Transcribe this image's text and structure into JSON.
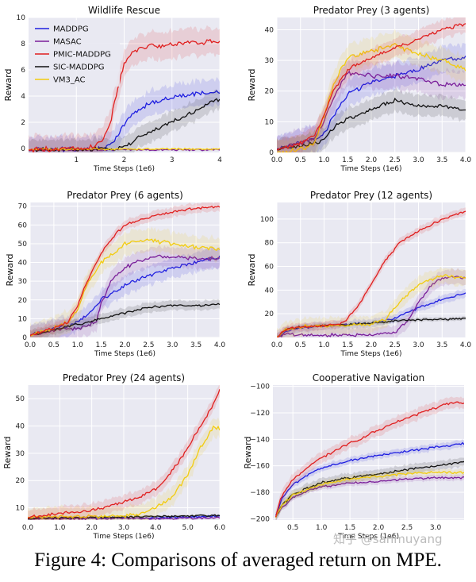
{
  "figure": {
    "caption": "Figure 4: Comparisons of averaged return on MPE.",
    "watermark": "知乎 @sanmuyang"
  },
  "legend": {
    "entries": [
      "MADDPG",
      "MASAC",
      "PMIC-MADDPG",
      "SIC-MADDPG",
      "VM3_AC"
    ],
    "colors": [
      "#1f1fe0",
      "#7a1f9a",
      "#e01f1f",
      "#111111",
      "#f2cc0f"
    ]
  },
  "chart_data": [
    {
      "type": "line",
      "title": "Wildlife Rescue",
      "xlabel": "Time Steps (1e6)",
      "ylabel": "Reward",
      "xlim": [
        0,
        4
      ],
      "ylim": [
        -0.3,
        10
      ],
      "xticks": [
        1,
        2,
        3,
        4
      ],
      "yticks": [
        0,
        2,
        4,
        6,
        8,
        10
      ],
      "xtick_labels": [
        "1",
        "2",
        "3",
        "4"
      ],
      "ytick_labels": [
        "0",
        "2",
        "4",
        "6",
        "8",
        "10"
      ],
      "legend": "top-left",
      "series": [
        {
          "name": "MADDPG",
          "x": [
            0,
            1.0,
            1.4,
            1.6,
            1.8,
            2.0,
            2.2,
            2.4,
            2.6,
            2.8,
            3.0,
            3.2,
            3.4,
            3.6,
            3.8,
            4.0
          ],
          "y": [
            -0.1,
            -0.05,
            0.0,
            0.05,
            0.7,
            1.8,
            2.7,
            3.2,
            3.5,
            3.7,
            3.9,
            4.0,
            4.1,
            4.2,
            4.3,
            4.3
          ],
          "band": 1.1
        },
        {
          "name": "MASAC",
          "x": [
            0,
            4.0
          ],
          "y": [
            -0.1,
            -0.1
          ],
          "band": 0.1
        },
        {
          "name": "PMIC-MADDPG",
          "x": [
            0,
            1.0,
            1.3,
            1.5,
            1.7,
            1.8,
            1.9,
            2.0,
            2.2,
            2.4,
            2.6,
            2.8,
            3.0,
            3.2,
            3.4,
            3.6,
            3.8,
            4.0
          ],
          "y": [
            -0.1,
            0.0,
            0.1,
            0.4,
            1.8,
            3.5,
            5.0,
            6.5,
            7.4,
            7.7,
            7.9,
            7.8,
            7.9,
            8.0,
            8.1,
            8.0,
            8.2,
            8.1
          ],
          "band": 1.2
        },
        {
          "name": "SIC-MADDPG",
          "x": [
            0,
            1.5,
            1.9,
            2.1,
            2.3,
            2.5,
            2.7,
            2.9,
            3.1,
            3.3,
            3.5,
            3.7,
            3.8,
            4.0
          ],
          "y": [
            -0.1,
            -0.05,
            0.0,
            0.3,
            0.9,
            1.2,
            1.5,
            1.9,
            2.2,
            2.6,
            2.8,
            3.3,
            3.6,
            3.7
          ],
          "band": 0.9
        },
        {
          "name": "VM3_AC",
          "x": [
            0,
            4.0
          ],
          "y": [
            -0.05,
            -0.05
          ],
          "band": 0.08
        }
      ]
    },
    {
      "type": "line",
      "title": "Predator Prey (3 agents)",
      "xlabel": "Time Steps (1e6)",
      "ylabel": "Reward",
      "xlim": [
        0,
        4
      ],
      "ylim": [
        0,
        44
      ],
      "xticks": [
        0,
        0.5,
        1,
        1.5,
        2,
        2.5,
        3,
        3.5,
        4
      ],
      "yticks": [
        0,
        10,
        20,
        30,
        40
      ],
      "xtick_labels": [
        "0.0",
        "0.5",
        "1.0",
        "1.5",
        "2.0",
        "2.5",
        "3.0",
        "3.5",
        "4.0"
      ],
      "ytick_labels": [
        "0",
        "10",
        "20",
        "30",
        "40"
      ],
      "series": [
        {
          "name": "MADDPG",
          "x": [
            0,
            0.5,
            0.8,
            1.0,
            1.2,
            1.5,
            2.0,
            2.5,
            3.0,
            3.5,
            4.0
          ],
          "y": [
            1,
            3,
            4,
            6,
            12,
            19,
            23,
            25,
            27,
            30,
            31
          ],
          "band": 5
        },
        {
          "name": "MASAC",
          "x": [
            0,
            0.5,
            0.8,
            1.0,
            1.2,
            1.5,
            2.0,
            2.5,
            3.0,
            3.5,
            4.0
          ],
          "y": [
            1,
            3,
            5,
            10,
            18,
            26,
            25,
            25,
            24,
            22,
            22
          ],
          "band": 5
        },
        {
          "name": "PMIC-MADDPG",
          "x": [
            0,
            0.5,
            0.8,
            1.0,
            1.2,
            1.4,
            1.6,
            2.0,
            2.5,
            3.0,
            3.5,
            4.0
          ],
          "y": [
            1,
            3,
            6,
            12,
            20,
            25,
            28,
            31,
            34,
            37,
            40,
            42
          ],
          "band": 3.5
        },
        {
          "name": "SIC-MADDPG",
          "x": [
            0,
            0.5,
            0.8,
            1.0,
            1.2,
            1.5,
            2.0,
            2.5,
            3.0,
            3.5,
            4.0
          ],
          "y": [
            1,
            2,
            3,
            4,
            8,
            11,
            14,
            17,
            15,
            15,
            14
          ],
          "band": 4
        },
        {
          "name": "VM3_AC",
          "x": [
            0,
            0.5,
            0.8,
            1.0,
            1.2,
            1.5,
            2.0,
            2.5,
            3.0,
            3.5,
            4.0
          ],
          "y": [
            0,
            1,
            3,
            12,
            22,
            31,
            33,
            35,
            32,
            30,
            27
          ],
          "band": 5
        }
      ]
    },
    {
      "type": "line",
      "title": "Predator Prey (6 agents)",
      "xlabel": "Time Steps (1e6)",
      "ylabel": "Reward",
      "xlim": [
        0,
        4
      ],
      "ylim": [
        0,
        72
      ],
      "xticks": [
        0,
        0.5,
        1,
        1.5,
        2,
        2.5,
        3,
        3.5,
        4
      ],
      "yticks": [
        0,
        10,
        20,
        30,
        40,
        50,
        60,
        70
      ],
      "xtick_labels": [
        "0.0",
        "0.5",
        "1.0",
        "1.5",
        "2.0",
        "2.5",
        "3.0",
        "3.5",
        "4.0"
      ],
      "ytick_labels": [
        "0",
        "10",
        "20",
        "30",
        "40",
        "50",
        "60",
        "70"
      ],
      "series": [
        {
          "name": "MADDPG",
          "x": [
            0,
            0.5,
            0.8,
            1.0,
            1.3,
            1.5,
            2.0,
            2.5,
            3.0,
            3.5,
            4.0
          ],
          "y": [
            1,
            5,
            6,
            8,
            14,
            20,
            28,
            33,
            37,
            40,
            43
          ],
          "band": 6
        },
        {
          "name": "MASAC",
          "x": [
            0,
            0.5,
            1.0,
            1.2,
            1.4,
            1.5,
            1.7,
            2.0,
            2.3,
            2.6,
            3.0,
            3.5,
            4.0
          ],
          "y": [
            1,
            4,
            5,
            6,
            9,
            18,
            30,
            37,
            41,
            43,
            43,
            42,
            42
          ],
          "band": 6
        },
        {
          "name": "PMIC-MADDPG",
          "x": [
            0,
            0.5,
            0.8,
            1.0,
            1.2,
            1.5,
            1.8,
            2.0,
            2.5,
            3.0,
            3.5,
            4.0
          ],
          "y": [
            1,
            5,
            8,
            17,
            30,
            45,
            55,
            60,
            64,
            67,
            69,
            70
          ],
          "band": 3
        },
        {
          "name": "SIC-MADDPG",
          "x": [
            0,
            0.5,
            1.0,
            1.5,
            2.0,
            2.5,
            3.0,
            3.5,
            4.0
          ],
          "y": [
            1,
            4,
            7,
            10,
            13,
            16,
            17,
            17,
            18
          ],
          "band": 3
        },
        {
          "name": "VM3_AC",
          "x": [
            0,
            0.5,
            0.8,
            1.0,
            1.2,
            1.5,
            2.0,
            2.5,
            3.0,
            3.5,
            4.0
          ],
          "y": [
            1,
            5,
            8,
            15,
            28,
            40,
            50,
            52,
            50,
            48,
            47
          ],
          "band": 7
        }
      ]
    },
    {
      "type": "line",
      "title": "Predator Prey (12 agents)",
      "xlabel": "Time Steps (1e6)",
      "ylabel": "Reward",
      "xlim": [
        0,
        4
      ],
      "ylim": [
        0,
        114
      ],
      "xticks": [
        0,
        0.5,
        1,
        1.5,
        2,
        2.5,
        3,
        3.5,
        4
      ],
      "yticks": [
        20,
        40,
        60,
        80,
        100
      ],
      "xtick_labels": [
        "0.0",
        "0.5",
        "1.0",
        "1.5",
        "2.0",
        "2.5",
        "3.0",
        "3.5",
        "4.0"
      ],
      "ytick_labels": [
        "20",
        "40",
        "60",
        "80",
        "100"
      ],
      "series": [
        {
          "name": "MADDPG",
          "x": [
            0,
            0.2,
            0.5,
            1.0,
            1.5,
            2.0,
            2.5,
            3.0,
            3.5,
            4.0
          ],
          "y": [
            0,
            5,
            8,
            10,
            11,
            12,
            16,
            25,
            32,
            37
          ],
          "band": 4
        },
        {
          "name": "MASAC",
          "x": [
            0,
            0.2,
            0.5,
            1.0,
            1.5,
            2.0,
            2.5,
            2.8,
            3.0,
            3.3,
            3.5,
            3.8,
            4.0
          ],
          "y": [
            0,
            3,
            2,
            2,
            2,
            2,
            4,
            15,
            30,
            45,
            50,
            51,
            50
          ],
          "band": 7
        },
        {
          "name": "PMIC-MADDPG",
          "x": [
            0,
            0.2,
            0.5,
            1.0,
            1.4,
            1.7,
            2.0,
            2.3,
            2.6,
            3.0,
            3.5,
            4.0
          ],
          "y": [
            0,
            7,
            9,
            10,
            12,
            25,
            45,
            65,
            80,
            90,
            100,
            107
          ],
          "band": 4
        },
        {
          "name": "SIC-MADDPG",
          "x": [
            0,
            0.2,
            0.5,
            1.0,
            1.5,
            2.0,
            2.5,
            3.0,
            3.5,
            4.0
          ],
          "y": [
            0,
            7,
            9,
            10,
            11,
            12,
            14,
            15,
            15,
            16
          ],
          "band": 2
        },
        {
          "name": "VM3_AC",
          "x": [
            0,
            0.2,
            0.5,
            1.0,
            1.5,
            2.0,
            2.3,
            2.6,
            3.0,
            3.5,
            4.0
          ],
          "y": [
            0,
            7,
            9,
            10,
            10,
            11,
            15,
            30,
            45,
            52,
            50
          ],
          "band": 8
        }
      ]
    },
    {
      "type": "line",
      "title": "Predator Prey (24 agents)",
      "xlabel": "Time Steps (1e6)",
      "ylabel": "Reward",
      "xlim": [
        0,
        6
      ],
      "ylim": [
        5.5,
        55
      ],
      "xticks": [
        0,
        1,
        2,
        3,
        4,
        5,
        6
      ],
      "yticks": [
        10,
        20,
        30,
        40,
        50
      ],
      "xtick_labels": [
        "0.0",
        "1.0",
        "2.0",
        "3.0",
        "4.0",
        "5.0",
        "6.0"
      ],
      "ytick_labels": [
        "10",
        "20",
        "30",
        "40",
        "50"
      ],
      "series": [
        {
          "name": "MADDPG",
          "x": [
            0,
            1,
            2,
            3,
            4,
            5,
            6
          ],
          "y": [
            6,
            6.2,
            6.2,
            6.3,
            6.4,
            6.6,
            7.0
          ],
          "band": 0.6
        },
        {
          "name": "MASAC",
          "x": [
            0,
            1,
            2,
            3,
            4,
            5,
            6
          ],
          "y": [
            6,
            6,
            6,
            6.1,
            6.1,
            6.2,
            6.3
          ],
          "band": 0.4
        },
        {
          "name": "PMIC-MADDPG",
          "x": [
            0,
            1.0,
            2.0,
            2.5,
            3.0,
            3.5,
            4.0,
            4.3,
            4.6,
            5.0,
            5.4,
            5.8,
            6.0
          ],
          "y": [
            6.5,
            8,
            9,
            10.5,
            12,
            14,
            17,
            20,
            25,
            32,
            40,
            48,
            53
          ],
          "band": 3
        },
        {
          "name": "SIC-MADDPG",
          "x": [
            0,
            1,
            2,
            3,
            4,
            5,
            6
          ],
          "y": [
            6,
            6.3,
            6.5,
            6.6,
            6.8,
            7,
            7.2
          ],
          "band": 0.5
        },
        {
          "name": "VM3_AC",
          "x": [
            0,
            2.0,
            3.0,
            3.5,
            4.0,
            4.5,
            5.0,
            5.3,
            5.6,
            5.8,
            6.0
          ],
          "y": [
            6.5,
            6.8,
            7,
            8,
            10,
            14,
            22,
            30,
            36,
            40,
            39
          ],
          "band": 4
        }
      ]
    },
    {
      "type": "line",
      "title": "Cooperative Navigation",
      "xlabel": "Time Steps (1e6)",
      "ylabel": "Reward",
      "xlim": [
        0.15,
        3.5
      ],
      "ylim": [
        -201,
        -99
      ],
      "xticks": [
        0.5,
        1,
        1.5,
        2,
        2.5,
        3
      ],
      "yticks": [
        -200,
        -180,
        -160,
        -140,
        -120,
        -100
      ],
      "xtick_labels": [
        "0.5",
        "1.0",
        "1.5",
        "2.0",
        "2.5",
        "3.0"
      ],
      "ytick_labels": [
        "−200",
        "−180",
        "−160",
        "−140",
        "−120",
        "−100"
      ],
      "series": [
        {
          "name": "MADDPG",
          "x": [
            0.2,
            0.3,
            0.5,
            0.8,
            1.0,
            1.5,
            2.0,
            2.5,
            3.0,
            3.5
          ],
          "y": [
            -198,
            -185,
            -174,
            -166,
            -162,
            -156,
            -152,
            -149,
            -146,
            -143
          ],
          "band": 3
        },
        {
          "name": "MASAC",
          "x": [
            0.2,
            0.3,
            0.5,
            0.8,
            1.0,
            1.5,
            2.0,
            2.5,
            3.0,
            3.5
          ],
          "y": [
            -199,
            -192,
            -184,
            -178,
            -176,
            -173,
            -172,
            -170,
            -169,
            -169
          ],
          "band": 2.5
        },
        {
          "name": "PMIC-MADDPG",
          "x": [
            0.2,
            0.3,
            0.5,
            0.8,
            1.0,
            1.5,
            2.0,
            2.5,
            3.0,
            3.3,
            3.5
          ],
          "y": [
            -198,
            -183,
            -170,
            -160,
            -154,
            -143,
            -133,
            -124,
            -116,
            -112,
            -113
          ],
          "band": 5
        },
        {
          "name": "SIC-MADDPG",
          "x": [
            0.2,
            0.3,
            0.5,
            0.8,
            1.0,
            1.5,
            2.0,
            2.5,
            3.0,
            3.5
          ],
          "y": [
            -199,
            -190,
            -182,
            -176,
            -173,
            -169,
            -166,
            -163,
            -160,
            -157
          ],
          "band": 4
        },
        {
          "name": "VM3_AC",
          "x": [
            0.2,
            0.3,
            0.5,
            0.8,
            1.0,
            1.5,
            2.0,
            2.5,
            3.0,
            3.5
          ],
          "y": [
            -199,
            -190,
            -182,
            -177,
            -174,
            -170,
            -168,
            -166,
            -165,
            -165
          ],
          "band": 3
        }
      ]
    }
  ]
}
